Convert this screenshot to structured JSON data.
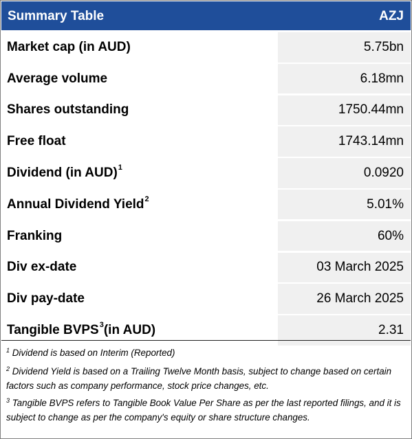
{
  "header": {
    "title": "Summary Table",
    "ticker": "AZJ"
  },
  "rows": [
    {
      "label": "Market cap (in AUD)",
      "sup": "",
      "value": "5.75bn"
    },
    {
      "label": "Average volume",
      "sup": "",
      "value": "6.18mn"
    },
    {
      "label": "Shares outstanding",
      "sup": "",
      "value": "1750.44mn"
    },
    {
      "label": "Free float",
      "sup": "",
      "value": "1743.14mn"
    },
    {
      "label": "Dividend (in AUD)",
      "sup": "1",
      "value": "0.0920"
    },
    {
      "label": "Annual Dividend Yield",
      "sup": "2",
      "value": "5.01%"
    },
    {
      "label": "Franking",
      "sup": "",
      "value": "60%"
    },
    {
      "label": "Div ex-date",
      "sup": "",
      "value": "03 March 2025"
    },
    {
      "label": "Div pay-date",
      "sup": "",
      "value": "26 March 2025"
    },
    {
      "label": "Tangible BVPS",
      "sup": "3",
      "label_suffix": " (in AUD)",
      "value": "2.31"
    }
  ],
  "footnotes": [
    {
      "mark": "1",
      "text": " Dividend is based on Interim (Reported)"
    },
    {
      "mark": "2",
      "text": " Dividend Yield is based on a Trailing Twelve Month basis, subject to change based on certain factors such as company performance, stock price changes, etc."
    },
    {
      "mark": "3",
      "text": " Tangible BVPS refers to Tangible Book Value Per Share as per the last reported filings, and it is subject to change as per the company's equity or share structure changes."
    }
  ],
  "colors": {
    "header_bg": "#1f4e9a",
    "header_text": "#ffffff",
    "value_bg": "#f0f0f0"
  }
}
